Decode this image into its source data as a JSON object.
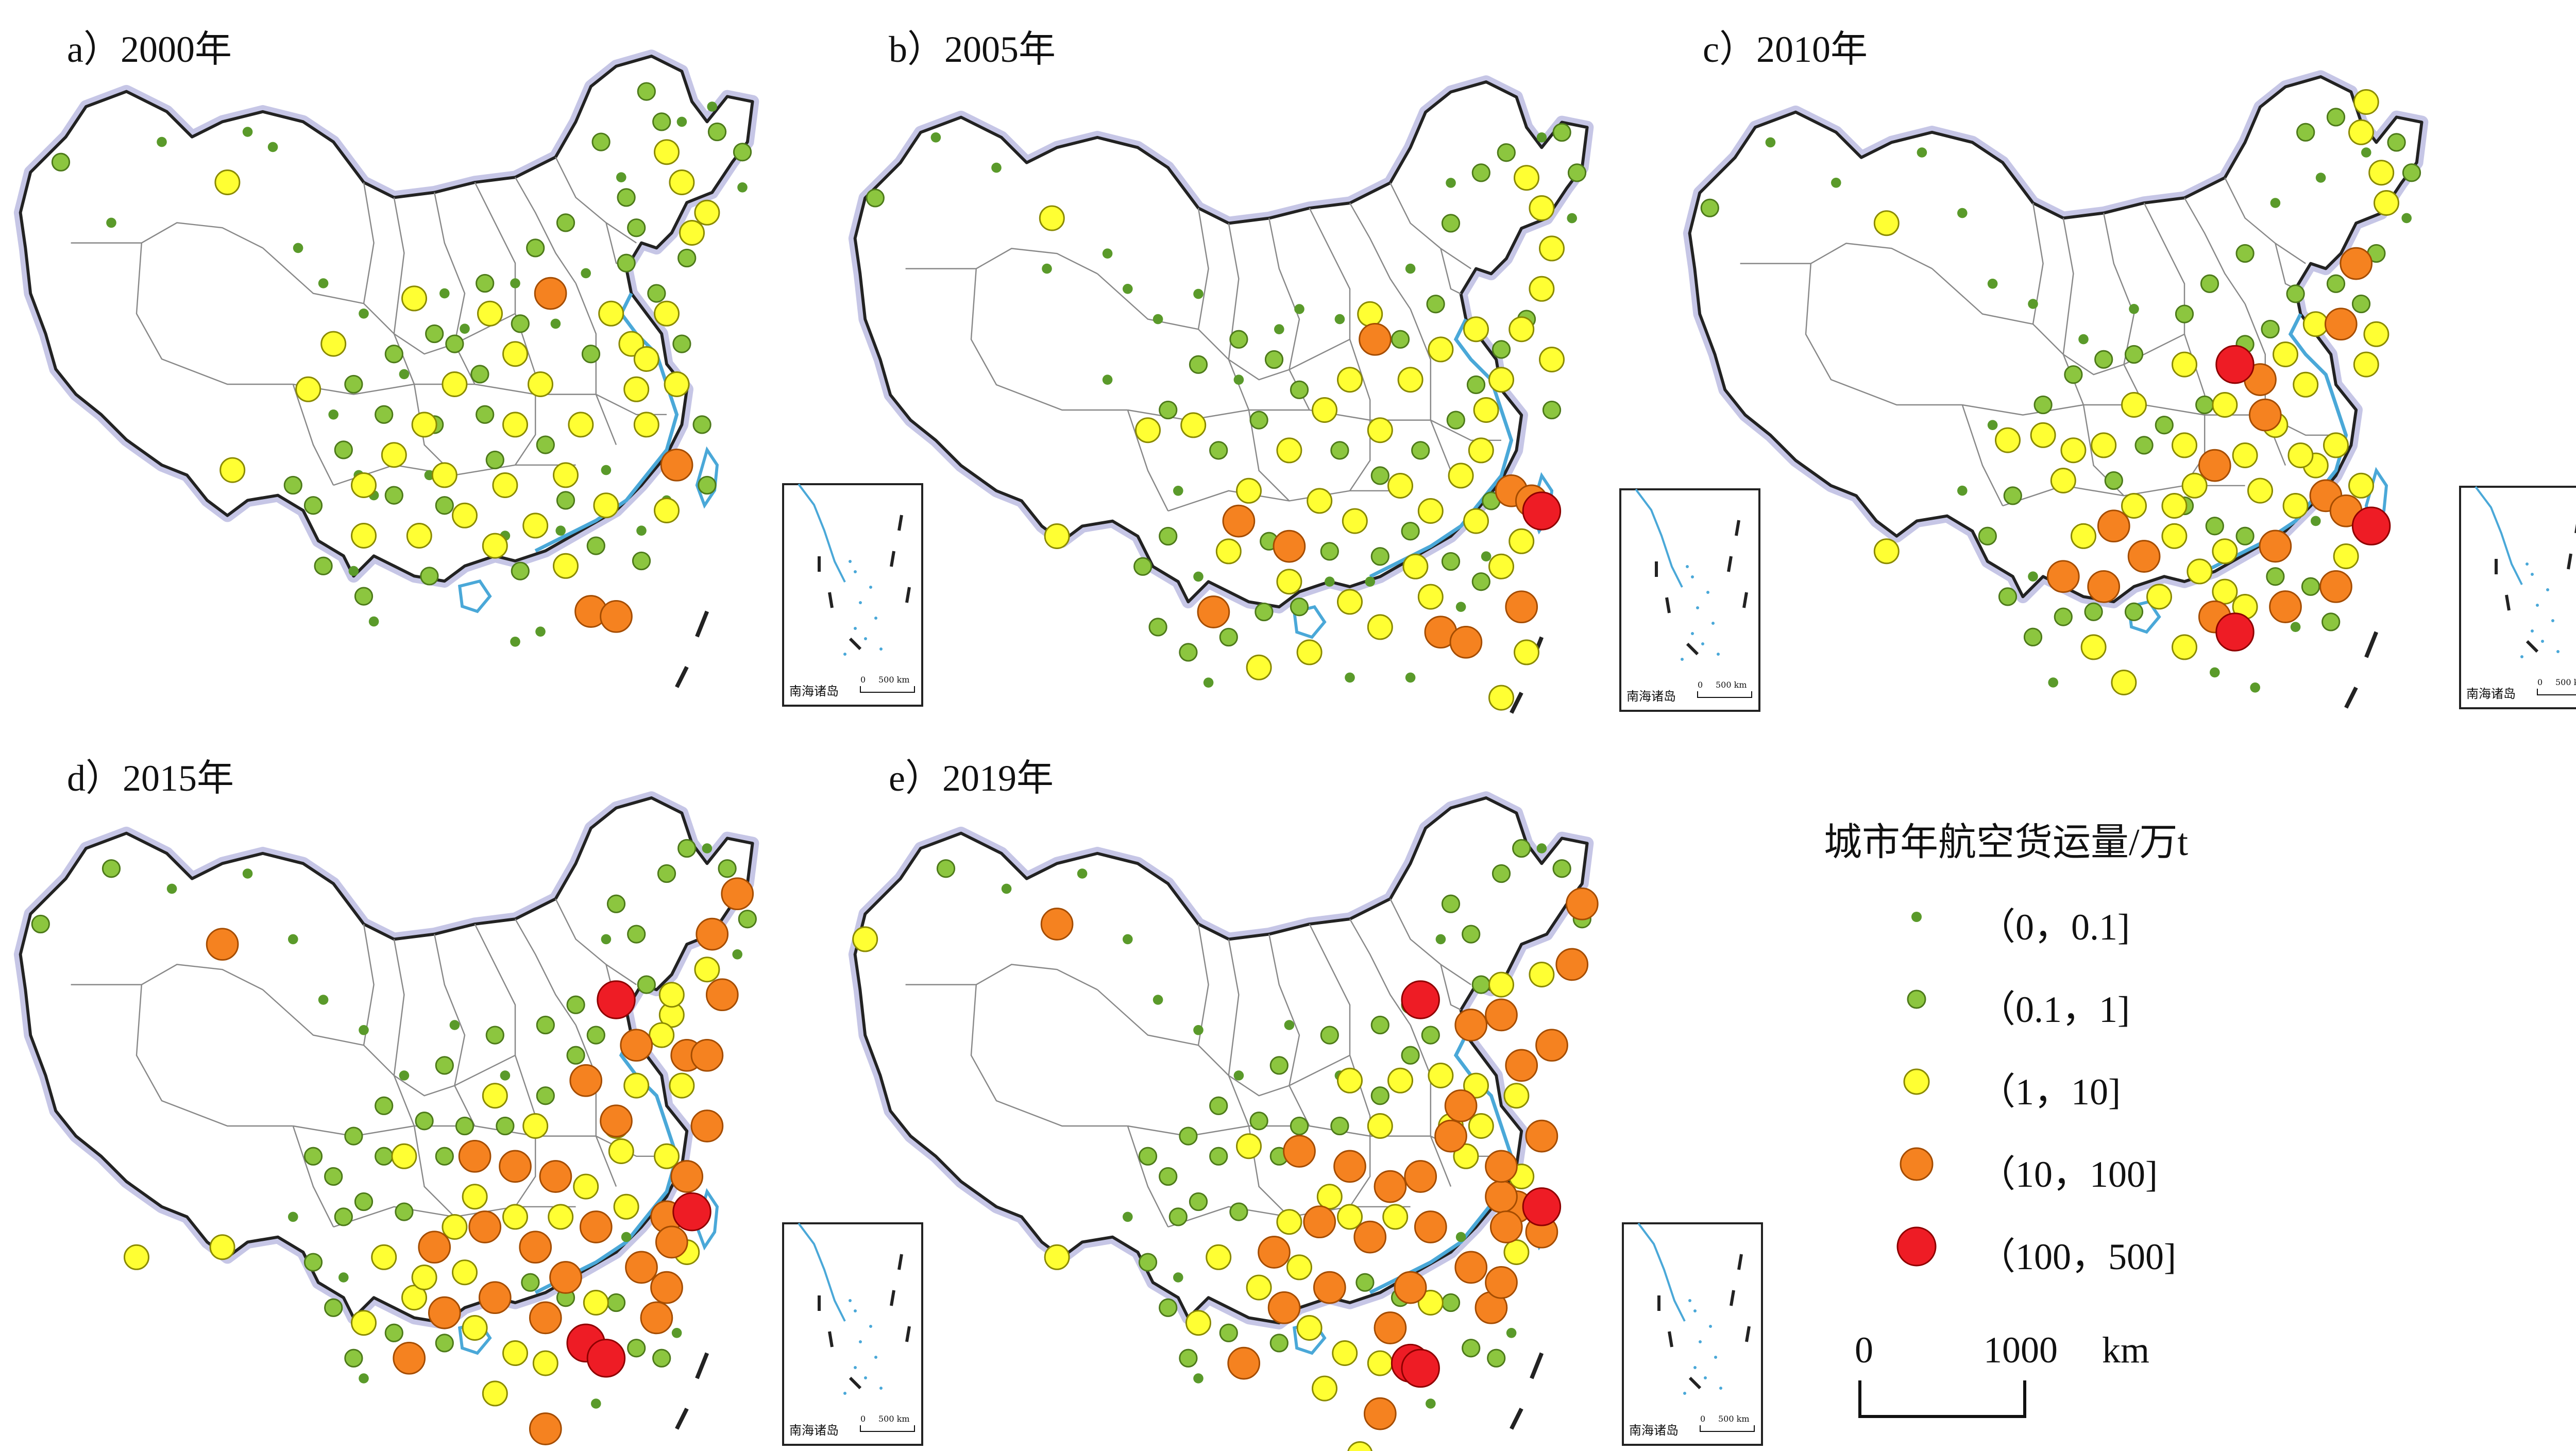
{
  "panels": [
    {
      "title": "a）2000年"
    },
    {
      "title": "b）2005年"
    },
    {
      "title": "c）2010年"
    },
    {
      "title": "d）2015年"
    },
    {
      "title": "e）2019年"
    }
  ],
  "inset": {
    "label": "南海诸岛",
    "scale_zero": "0",
    "scale_text": "500 km"
  },
  "legend": {
    "title": "城市年航空货运量/万t",
    "classes": [
      {
        "label": "（0，0.1]",
        "color": "#5a9a2a"
      },
      {
        "label": "（0.1，1]",
        "color": "#8cc63f"
      },
      {
        "label": "（1，10]",
        "color": "#ffff33"
      },
      {
        "label": "（10，100]",
        "color": "#f58220"
      },
      {
        "label": "（100，500]",
        "color": "#ee1c25"
      }
    ]
  },
  "scale_bar": {
    "zero": "0",
    "value": "1000",
    "unit": "km"
  },
  "colors": {
    "coast": "#4aa8d8",
    "border": "#888888",
    "shadow": "#c6c6e6"
  }
}
